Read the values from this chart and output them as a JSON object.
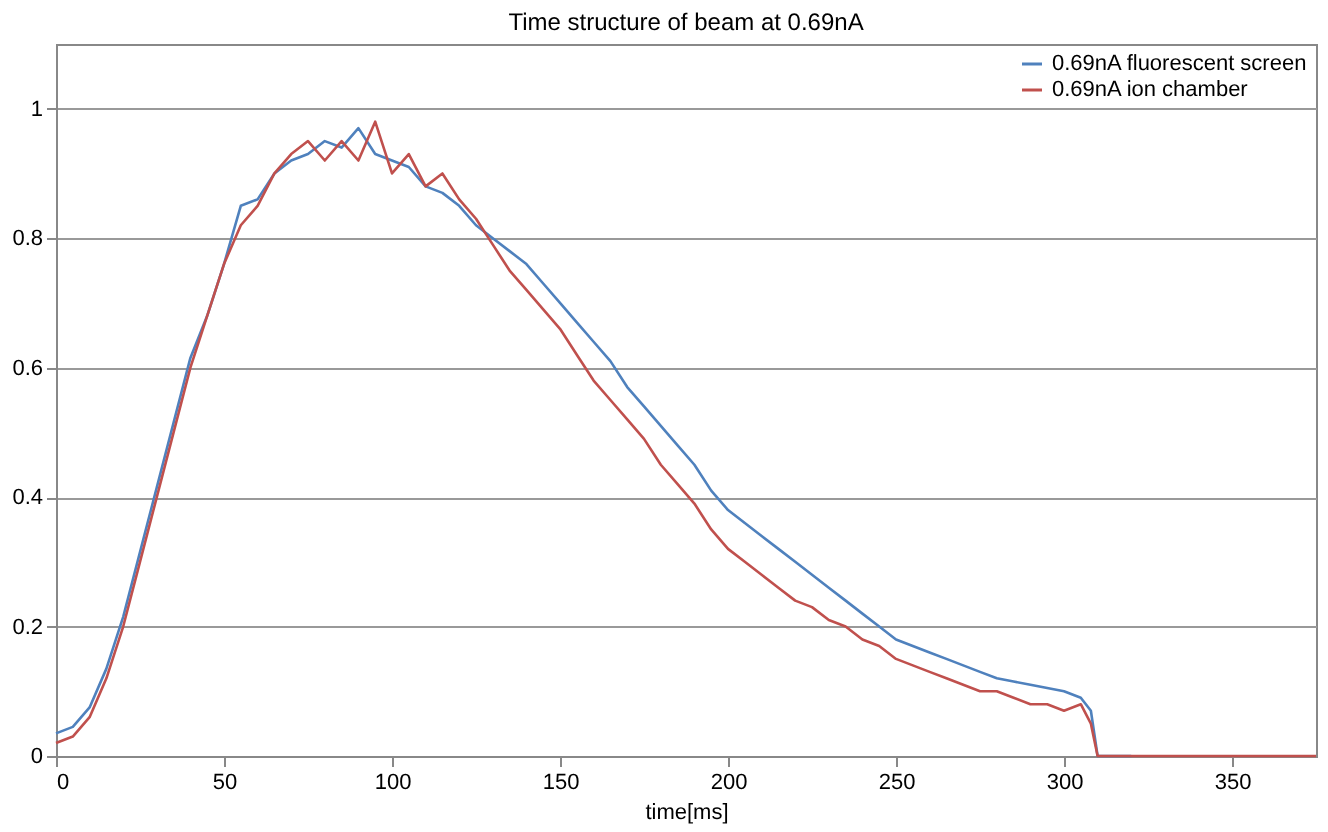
{
  "chart_data": {
    "type": "line",
    "title": "Time structure of beam at 0.69nA",
    "xlabel": "time[ms]",
    "x": [
      0,
      5,
      10,
      15,
      20,
      25,
      30,
      35,
      40,
      45,
      50,
      55,
      60,
      65,
      70,
      75,
      80,
      85,
      90,
      95,
      100,
      105,
      110,
      115,
      120,
      125,
      130,
      135,
      140,
      145,
      150,
      155,
      160,
      165,
      170,
      175,
      180,
      185,
      190,
      195,
      200,
      205,
      210,
      215,
      220,
      225,
      230,
      235,
      240,
      245,
      250,
      255,
      260,
      265,
      270,
      275,
      280,
      285,
      290,
      295,
      300,
      305,
      308,
      310,
      320,
      340,
      360,
      375
    ],
    "series": [
      {
        "name": "0.69nA fluorescent screen",
        "color": "#4f81bd",
        "values": [
          0.035,
          0.045,
          0.075,
          0.135,
          0.215,
          0.315,
          0.415,
          0.515,
          0.615,
          0.68,
          0.76,
          0.85,
          0.86,
          0.9,
          0.92,
          0.93,
          0.95,
          0.94,
          0.97,
          0.93,
          0.92,
          0.91,
          0.88,
          0.87,
          0.85,
          0.82,
          0.8,
          0.78,
          0.76,
          0.73,
          0.7,
          0.67,
          0.64,
          0.61,
          0.57,
          0.54,
          0.51,
          0.48,
          0.45,
          0.41,
          0.38,
          0.36,
          0.34,
          0.32,
          0.3,
          0.28,
          0.26,
          0.24,
          0.22,
          0.2,
          0.18,
          0.17,
          0.16,
          0.15,
          0.14,
          0.13,
          0.12,
          0.115,
          0.11,
          0.105,
          0.1,
          0.09,
          0.07,
          0,
          0,
          null,
          null,
          null
        ]
      },
      {
        "name": "0.69nA ion chamber",
        "color": "#c0504d",
        "values": [
          0.02,
          0.03,
          0.06,
          0.12,
          0.2,
          0.3,
          0.4,
          0.5,
          0.6,
          0.68,
          0.76,
          0.82,
          0.85,
          0.9,
          0.93,
          0.95,
          0.92,
          0.95,
          0.92,
          0.98,
          0.9,
          0.93,
          0.88,
          0.9,
          0.86,
          0.83,
          0.79,
          0.75,
          0.72,
          0.69,
          0.66,
          0.62,
          0.58,
          0.55,
          0.52,
          0.49,
          0.45,
          0.42,
          0.39,
          0.35,
          0.32,
          0.3,
          0.28,
          0.26,
          0.24,
          0.23,
          0.21,
          0.2,
          0.18,
          0.17,
          0.15,
          0.14,
          0.13,
          0.12,
          0.11,
          0.1,
          0.1,
          0.09,
          0.08,
          0.08,
          0.07,
          0.08,
          0.05,
          0,
          0,
          0,
          0,
          0
        ]
      }
    ],
    "xlim": [
      0,
      375
    ],
    "xticks": [
      0,
      50,
      100,
      150,
      200,
      250,
      300,
      350
    ],
    "ylim": [
      0,
      1.1
    ],
    "yticks": [
      {
        "value": 0,
        "label": "0"
      },
      0.2,
      0.4,
      0.6,
      0.8,
      {
        "value": 1,
        "label": "1"
      }
    ],
    "grid": "y",
    "legend": "top right",
    "line_style": "solid",
    "marker": "none"
  }
}
